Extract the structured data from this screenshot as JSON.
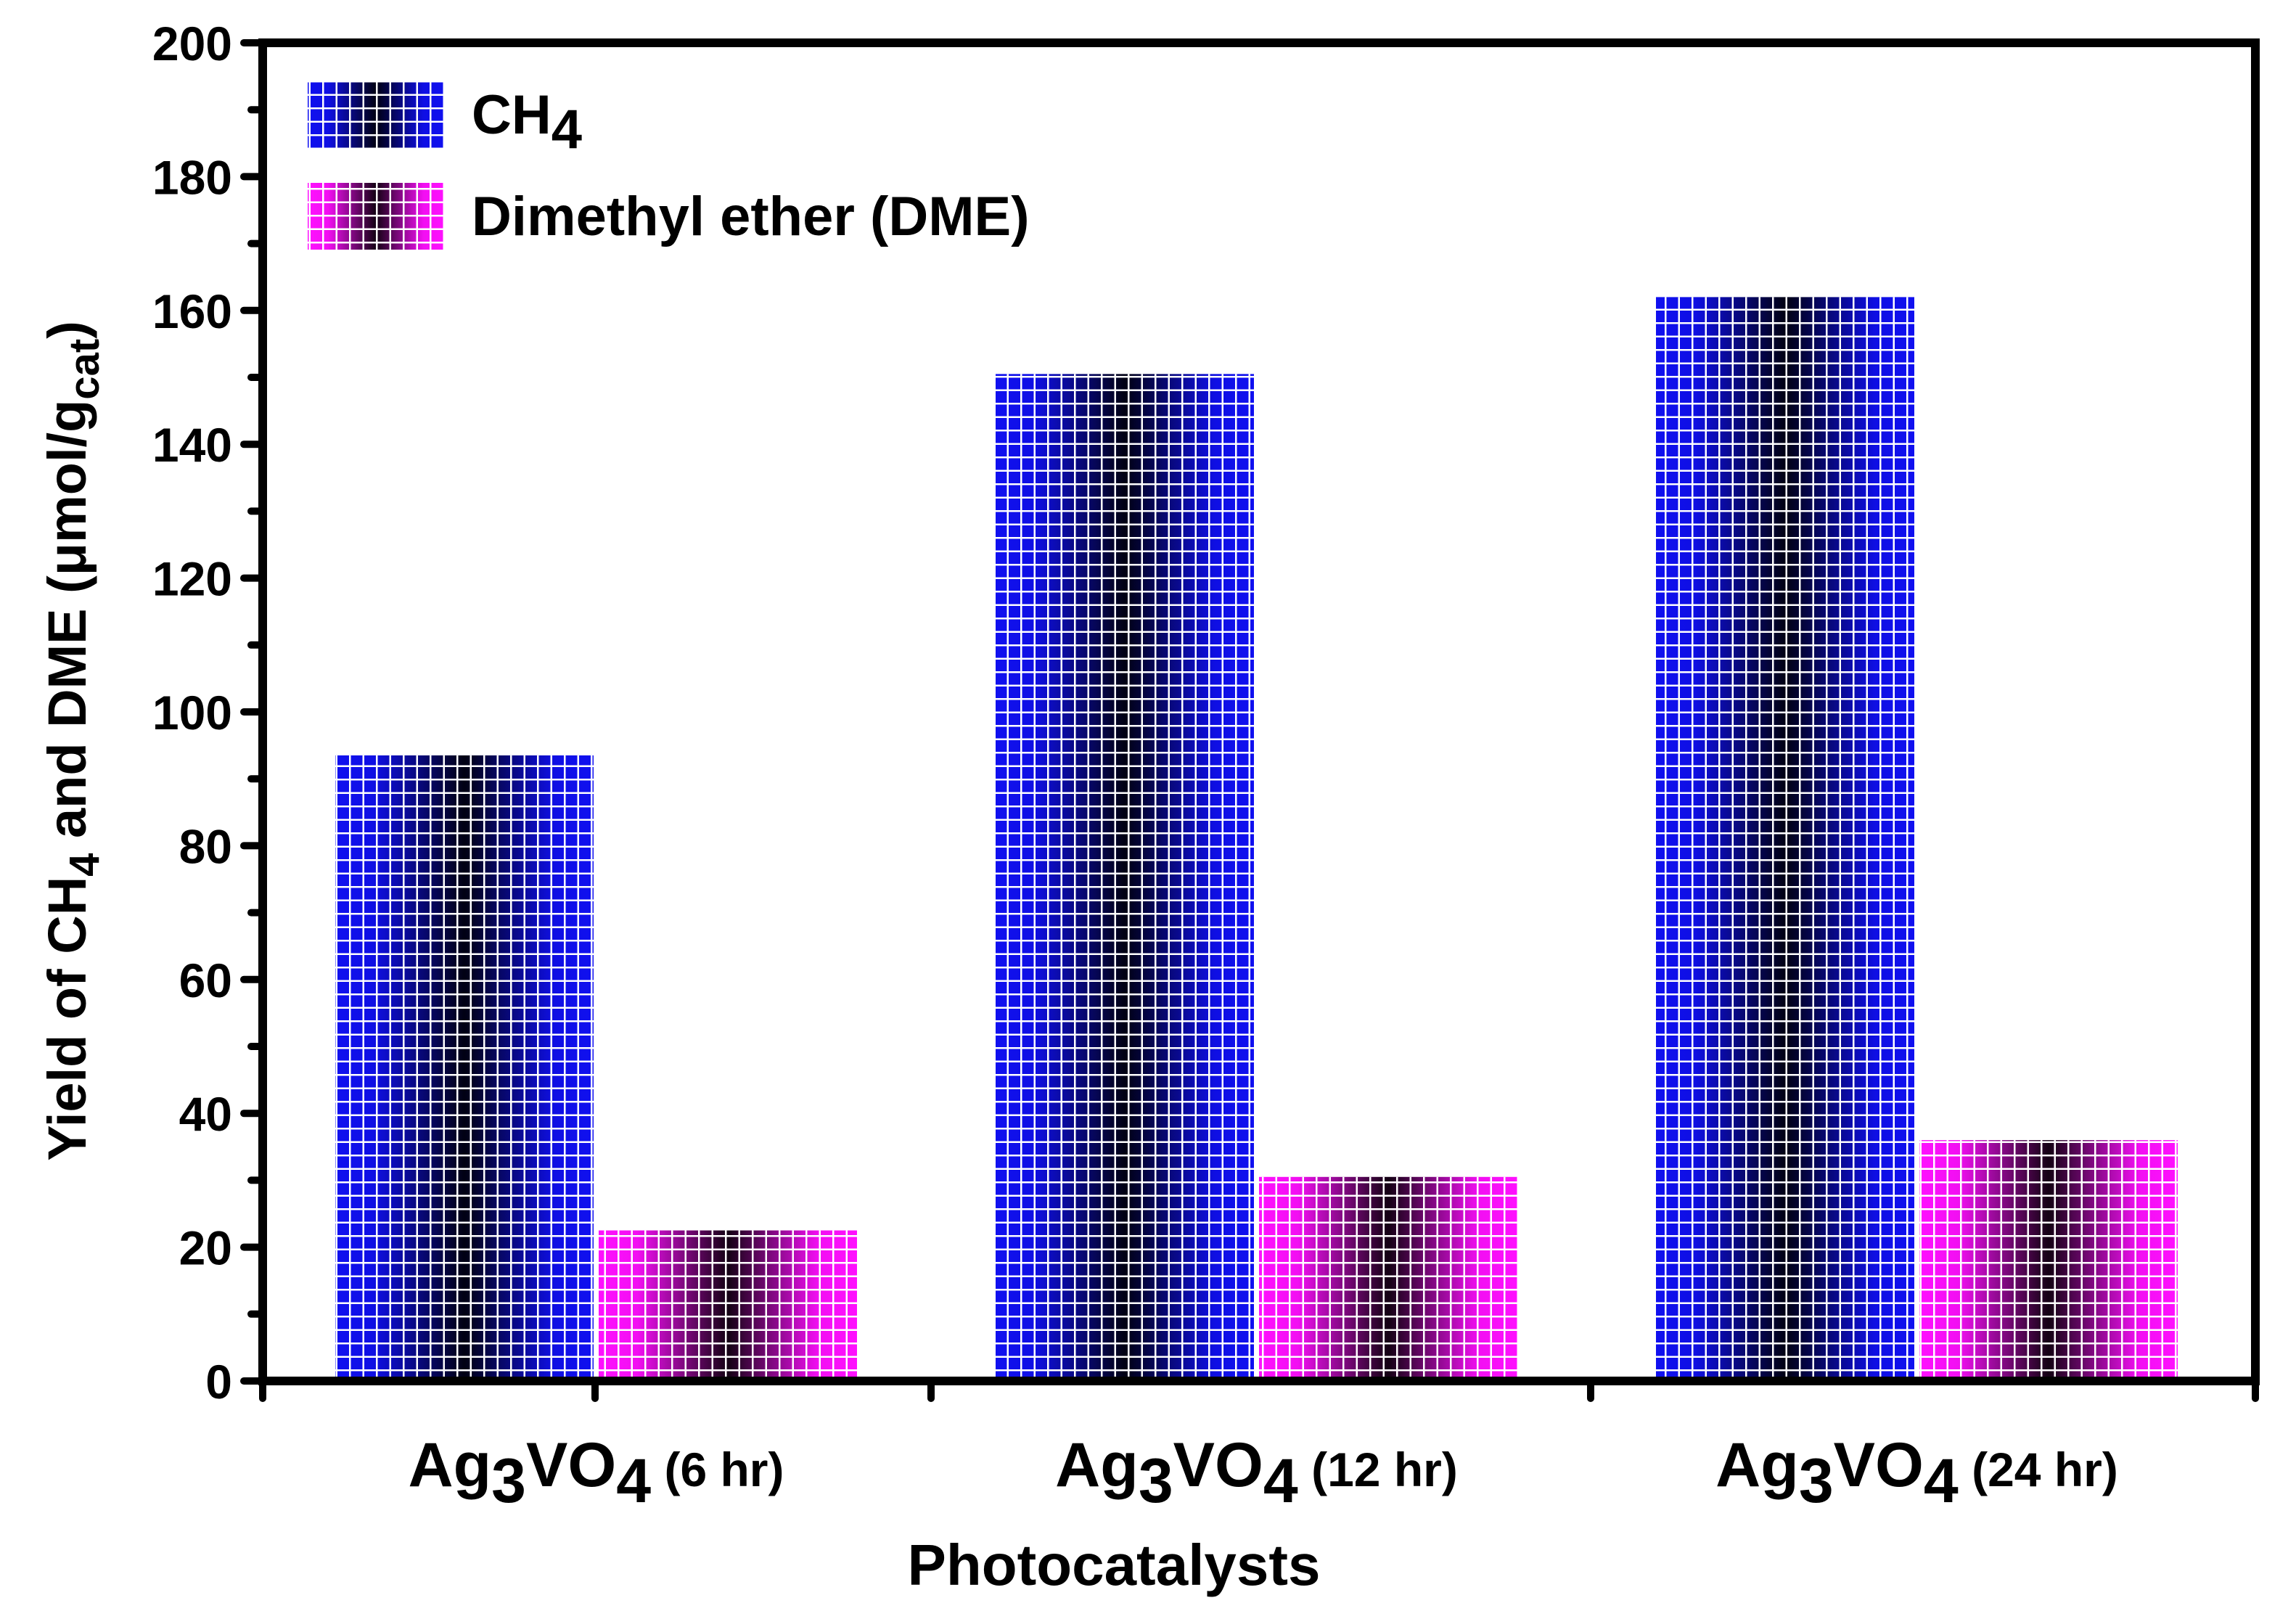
{
  "chart_data": {
    "type": "bar",
    "title": "",
    "xlabel": "Photocatalysts",
    "ylabel": {
      "prefix": "Yield of CH",
      "sub1": "4",
      "middle": " and DME (μmol/g",
      "sub2": "cat",
      "suffix": ")"
    },
    "categories": [
      {
        "base": "Ag",
        "sub1": "3",
        "mid": "VO",
        "sub2": "4",
        "suffix": " (6 hr)"
      },
      {
        "base": "Ag",
        "sub1": "3",
        "mid": "VO",
        "sub2": "4",
        "suffix": " (12 hr)"
      },
      {
        "base": "Ag",
        "sub1": "3",
        "mid": "VO",
        "sub2": "4",
        "suffix": " (24 hr)"
      }
    ],
    "series": [
      {
        "name": "CH",
        "name_sub": "4",
        "values": [
          93.5,
          150.5,
          162.0
        ],
        "color": "#1010f0",
        "dark_color": "#000000"
      },
      {
        "name": "Dimethyl ether (DME)",
        "name_sub": "",
        "values": [
          22.5,
          30.5,
          36.0
        ],
        "color": "#ff10ff",
        "dark_color": "#000000"
      }
    ],
    "ylim": [
      0,
      200
    ],
    "yticks": [
      0,
      20,
      40,
      60,
      80,
      100,
      120,
      140,
      160,
      180,
      200
    ],
    "grid": false,
    "legend_position": "top-left"
  }
}
